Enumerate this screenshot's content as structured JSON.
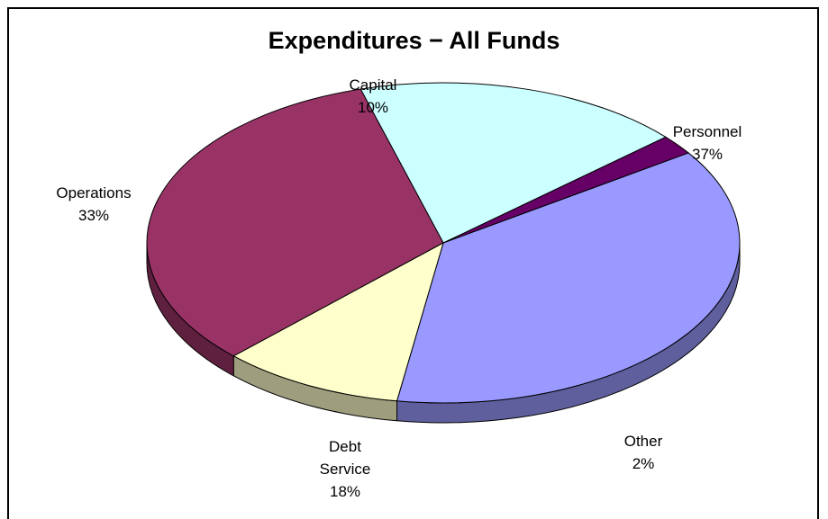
{
  "chart_data": {
    "type": "pie",
    "title": "Expenditures − All Funds",
    "three_d": true,
    "slices": [
      {
        "label": [
          "Personnel"
        ],
        "value": 37,
        "value_label": "37%",
        "color": "#9999ff"
      },
      {
        "label": [
          "Other"
        ],
        "value": 2,
        "value_label": "2%",
        "color": "#660066"
      },
      {
        "label": [
          "Debt",
          "Service"
        ],
        "value": 18,
        "value_label": "18%",
        "color": "#ccffff"
      },
      {
        "label": [
          "Operations"
        ],
        "value": 33,
        "value_label": "33%",
        "color": "#993366"
      },
      {
        "label": [
          "Capital"
        ],
        "value": 10,
        "value_label": "10%",
        "color": "#ffffcc"
      }
    ],
    "legend": "none"
  }
}
